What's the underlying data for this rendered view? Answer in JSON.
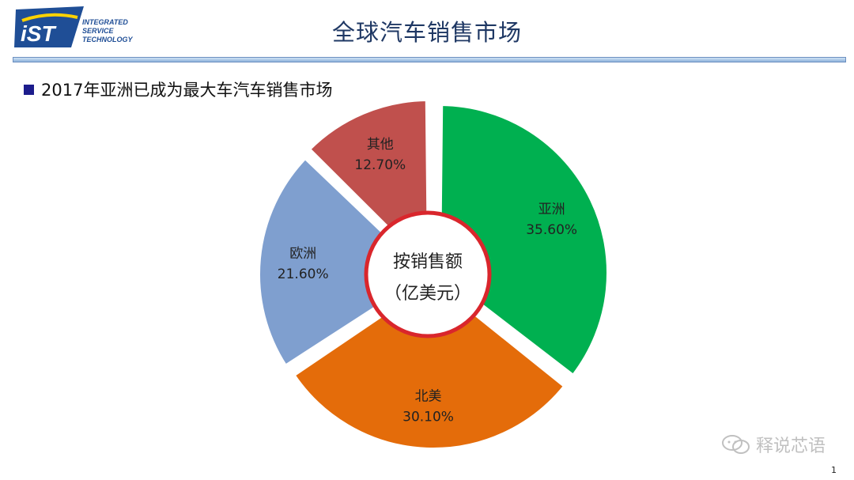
{
  "header": {
    "title": "全球汽车销售市场",
    "logo": {
      "abbr": "iST",
      "line1": "INTEGRATED",
      "line2": "SERVICE",
      "line3": "TECHNOLOGY"
    }
  },
  "bullet_text": "2017年亚洲已成为最大车汽车销售市场",
  "center_label": {
    "line1": "按销售额",
    "line2": "（亿美元）"
  },
  "watermark": "释说芯语",
  "page_number": "1",
  "colors": {
    "asia": "#00b050",
    "north_america": "#e46c0a",
    "europe": "#7f9fcf",
    "other": "#c0504d",
    "center_ring": "#d9262c"
  },
  "chart_data": {
    "type": "pie",
    "categories": [
      "亚洲",
      "北美",
      "欧洲",
      "其他"
    ],
    "values": [
      35.6,
      30.1,
      21.6,
      12.7
    ],
    "labels": [
      "35.60%",
      "30.10%",
      "21.60%",
      "12.70%"
    ],
    "colors": [
      "#00b050",
      "#e46c0a",
      "#7f9fcf",
      "#c0504d"
    ],
    "legend": "none"
  }
}
